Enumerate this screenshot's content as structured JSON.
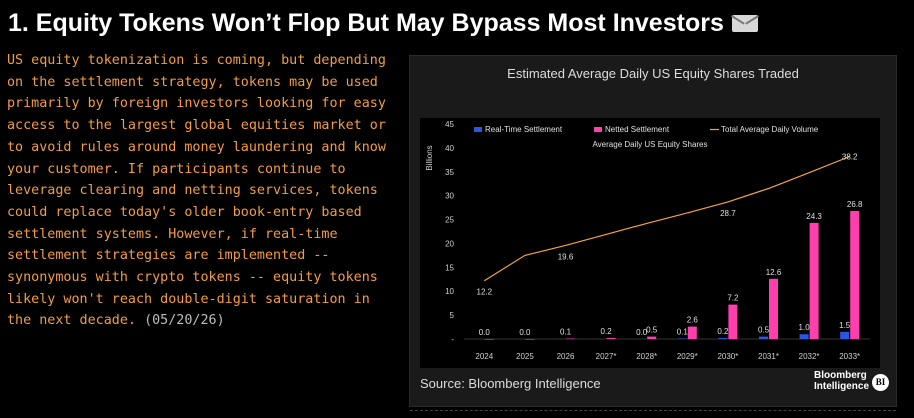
{
  "headline": "1. Equity Tokens Won’t Flop But May Bypass Most Investors",
  "headline_icon": "envelope-icon",
  "body": "US equity tokenization is coming, but depending on the settlement strategy, tokens may be used primarily by foreign investors looking for easy access to the largest global equities market or to avoid rules around money laundering and know your customer. If participants continue to leverage clearing and netting services, tokens could replace today's older book-entry based settlement systems. However, if real-time settlement strategies are implemented -- synonymous with crypto tokens -- equity tokens likely won't reach double-digit saturation in the next decade.",
  "date": "(05/20/26)",
  "card": {
    "source": "Source: Bloomberg Intelligence",
    "logo_line1": "Bloomberg",
    "logo_line2": "Intelligence",
    "logo_mark": "BI"
  },
  "colors": {
    "realtime": "#2b56e0",
    "netted": "#ff3fae",
    "total": "#f5a23a",
    "accent": "#f39c43"
  },
  "chart_data": {
    "type": "bar",
    "title": "Estimated Average Daily US Equity Shares Traded",
    "subtitle": "Average Daily US Equity Shares",
    "ylabel": "Billions",
    "ylim": [
      0,
      45
    ],
    "yticks": [
      0,
      5,
      10,
      15,
      20,
      25,
      30,
      35,
      40,
      45
    ],
    "categories": [
      "2024",
      "2025",
      "2026",
      "2027*",
      "2028*",
      "2029*",
      "2030*",
      "2031*",
      "2032*",
      "2033*"
    ],
    "legend_position": "top",
    "grid": false,
    "series": [
      {
        "name": "Real-Time Settlement",
        "type": "bar",
        "values": [
          0.0,
          0.0,
          0.0,
          0.0,
          0.0,
          0.1,
          0.2,
          0.5,
          1.0,
          1.5
        ],
        "labels": [
          "",
          "",
          "",
          "",
          "0.0",
          "0.1",
          "0.2",
          "0.5",
          "1.0",
          "1.5"
        ]
      },
      {
        "name": "Netted Settlement",
        "type": "bar",
        "values": [
          0.0,
          0.0,
          0.1,
          0.2,
          0.5,
          2.6,
          7.2,
          12.6,
          24.3,
          26.8
        ],
        "labels": [
          "0.0",
          "0.0",
          "0.1",
          "0.2",
          "0.5",
          "2.6",
          "7.2",
          "12.6",
          "24.3",
          "26.8"
        ]
      },
      {
        "name": "Total Average Daily Volume",
        "type": "line",
        "values": [
          12.2,
          17.5,
          19.6,
          21.9,
          24.2,
          26.4,
          28.7,
          31.5,
          34.8,
          38.2
        ],
        "labels": [
          "12.2",
          "",
          "19.6",
          "",
          "",
          "",
          "28.7",
          "",
          "",
          "38.2"
        ]
      }
    ]
  }
}
